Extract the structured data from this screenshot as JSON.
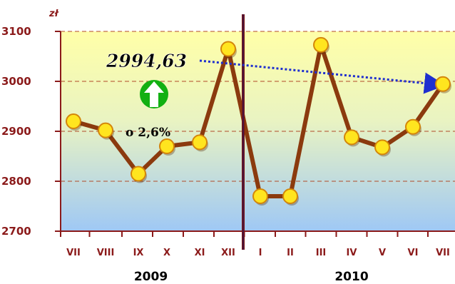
{
  "chart_data": {
    "type": "line",
    "unit": "zł",
    "categories": [
      "VII",
      "VIII",
      "IX",
      "X",
      "XI",
      "XII",
      "I",
      "II",
      "III",
      "IV",
      "V",
      "VI",
      "VII"
    ],
    "values": [
      2920,
      2902,
      2815,
      2870,
      2878,
      3065,
      2770,
      2770,
      3073,
      2888,
      2868,
      2909,
      2994.63
    ],
    "yticks": [
      2700,
      2800,
      2900,
      3000,
      3100
    ],
    "ylim": [
      2700,
      3100
    ],
    "years": [
      {
        "label": "2009",
        "from": 0,
        "to": 5
      },
      {
        "label": "2010",
        "from": 6,
        "to": 12
      }
    ],
    "annotation_value": "2994,63",
    "annotation_change": "o 2,6%",
    "grid": true,
    "colors": {
      "line": "#8B3A0E",
      "marker_fill": "#FFE51F",
      "marker_stroke": "#D4860A",
      "axis": "#8B1A1A",
      "gridline": "#B04A2A",
      "divider": "#7A1414",
      "trend_arrow": "#1F2FCF",
      "up_arrow": "#12B012",
      "bg_top": "#FFFFA8",
      "bg_bottom": "#9FC8F5"
    }
  }
}
